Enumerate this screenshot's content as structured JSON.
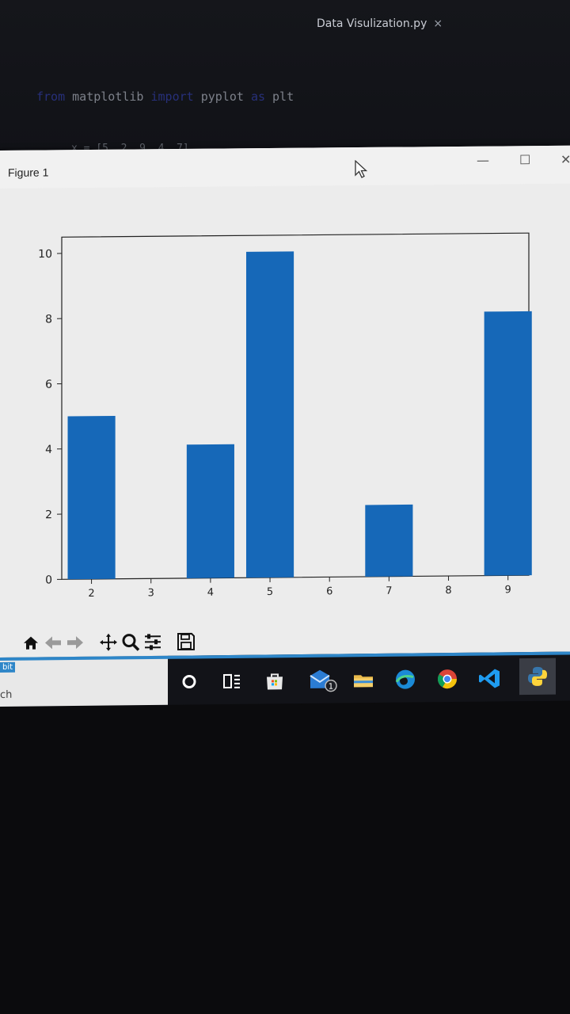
{
  "editor": {
    "tab_title": "Data Visulization.py",
    "tab_close": "×",
    "code_from": "from",
    "code_module": " matplotlib ",
    "code_import": "import",
    "code_name": " pyplot ",
    "code_as": "as",
    "code_alias": " plt",
    "code_line2": "x = [5, 2, 9, 4, 7]"
  },
  "figure": {
    "title": "Figure 1",
    "minimize": "—",
    "maximize": "☐",
    "close": "✕"
  },
  "chart_data": {
    "type": "bar",
    "categories": [
      2,
      4,
      5,
      7,
      9
    ],
    "values": [
      5,
      4.1,
      10,
      2.2,
      8.1
    ],
    "xticks": [
      "2",
      "3",
      "4",
      "5",
      "6",
      "7",
      "8",
      "9"
    ],
    "yticks": [
      "0",
      "2",
      "4",
      "6",
      "8",
      "10"
    ],
    "xlim": [
      1.5,
      9.35
    ],
    "ylim": [
      0,
      10.5
    ],
    "bar_color": "#1668b8",
    "grid": false
  },
  "toolbar": {
    "home": "home-icon",
    "back": "back-arrow-icon",
    "forward": "forward-arrow-icon",
    "pan": "pan-icon",
    "zoom": "zoom-icon",
    "configure": "configure-subplots-icon",
    "save": "save-icon"
  },
  "taskbar": {
    "start_label": "bit",
    "search_label": "ch",
    "mail_badge": "1",
    "icons": [
      "cortana-icon",
      "task-view-icon",
      "store-icon",
      "mail-icon",
      "file-explorer-icon",
      "edge-icon",
      "chrome-icon",
      "vscode-icon",
      "python-icon"
    ]
  },
  "colors": {
    "accent": "#2e86c8",
    "bar": "#1668b8",
    "figure_bg": "#ececec"
  }
}
